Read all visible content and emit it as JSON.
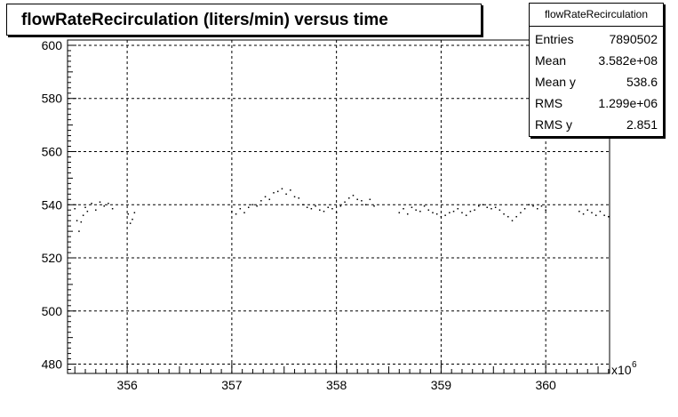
{
  "title": "flowRateRecirculation (liters/min) versus time",
  "stats": {
    "name": "flowRateRecirculation",
    "rows": [
      {
        "label": "Entries",
        "value": "7890502"
      },
      {
        "label": "Mean",
        "value": "3.582e+08"
      },
      {
        "label": "Mean y",
        "value": "538.6"
      },
      {
        "label": "RMS",
        "value": "1.299e+06"
      },
      {
        "label": "RMS y",
        "value": "2.851"
      }
    ]
  },
  "chart_data": {
    "type": "scatter",
    "title": "flowRateRecirculation (liters/min) versus time",
    "xlabel": "",
    "ylabel": "",
    "x_exponent_label": "x10",
    "x_exponent_power": "6",
    "xlim": [
      355.43,
      360.61
    ],
    "ylim": [
      476.5,
      602
    ],
    "xticks": [
      356,
      357,
      358,
      359,
      360
    ],
    "yticks": [
      480,
      500,
      520,
      540,
      560,
      580,
      600
    ],
    "grid": true,
    "series": [
      {
        "color": "#000000",
        "points": [
          [
            355.5,
            538.5
          ],
          [
            355.52,
            534.0
          ],
          [
            355.54,
            530.0
          ],
          [
            355.56,
            533.5
          ],
          [
            355.58,
            536.0
          ],
          [
            355.6,
            539.0
          ],
          [
            355.62,
            537.5
          ],
          [
            355.66,
            540.5
          ],
          [
            355.7,
            538.0
          ],
          [
            355.74,
            541.0
          ],
          [
            355.78,
            539.5
          ],
          [
            355.82,
            540.5
          ],
          [
            355.86,
            538.5
          ],
          [
            356.01,
            536.5
          ],
          [
            356.03,
            533.0
          ],
          [
            356.05,
            534.5
          ],
          [
            356.07,
            537.0
          ],
          [
            357.0,
            537.5
          ],
          [
            357.04,
            536.5
          ],
          [
            357.08,
            538.5
          ],
          [
            357.12,
            537.0
          ],
          [
            357.16,
            539.0
          ],
          [
            357.2,
            540.0
          ],
          [
            357.24,
            539.5
          ],
          [
            357.28,
            541.5
          ],
          [
            357.32,
            543.0
          ],
          [
            357.36,
            542.0
          ],
          [
            357.4,
            544.5
          ],
          [
            357.44,
            545.0
          ],
          [
            357.48,
            546.0
          ],
          [
            357.52,
            544.0
          ],
          [
            357.56,
            545.5
          ],
          [
            357.6,
            543.0
          ],
          [
            357.64,
            542.5
          ],
          [
            357.68,
            540.0
          ],
          [
            357.72,
            539.0
          ],
          [
            357.76,
            538.5
          ],
          [
            357.8,
            539.5
          ],
          [
            357.84,
            538.0
          ],
          [
            357.88,
            537.5
          ],
          [
            357.92,
            539.0
          ],
          [
            357.96,
            538.5
          ],
          [
            358.0,
            537.0
          ],
          [
            358.04,
            539.5
          ],
          [
            358.08,
            541.0
          ],
          [
            358.12,
            542.5
          ],
          [
            358.16,
            543.5
          ],
          [
            358.2,
            542.0
          ],
          [
            358.24,
            541.5
          ],
          [
            358.28,
            540.0
          ],
          [
            358.32,
            542.0
          ],
          [
            358.36,
            539.5
          ],
          [
            358.6,
            537.0
          ],
          [
            358.64,
            538.5
          ],
          [
            358.68,
            536.5
          ],
          [
            358.72,
            539.0
          ],
          [
            358.76,
            538.0
          ],
          [
            358.8,
            537.5
          ],
          [
            358.84,
            539.5
          ],
          [
            358.88,
            538.0
          ],
          [
            358.92,
            537.0
          ],
          [
            358.96,
            536.5
          ],
          [
            359.0,
            535.5
          ],
          [
            359.04,
            536.0
          ],
          [
            359.08,
            537.0
          ],
          [
            359.12,
            537.5
          ],
          [
            359.16,
            538.5
          ],
          [
            359.2,
            537.0
          ],
          [
            359.24,
            536.0
          ],
          [
            359.28,
            537.5
          ],
          [
            359.32,
            538.0
          ],
          [
            359.36,
            539.5
          ],
          [
            359.4,
            540.0
          ],
          [
            359.44,
            539.0
          ],
          [
            359.48,
            538.5
          ],
          [
            359.52,
            539.0
          ],
          [
            359.56,
            538.0
          ],
          [
            359.6,
            536.5
          ],
          [
            359.64,
            535.5
          ],
          [
            359.68,
            534.0
          ],
          [
            359.72,
            535.5
          ],
          [
            359.76,
            537.0
          ],
          [
            359.8,
            538.5
          ],
          [
            359.84,
            540.0
          ],
          [
            359.88,
            539.5
          ],
          [
            359.92,
            538.5
          ],
          [
            359.96,
            539.5
          ],
          [
            360.0,
            538.0
          ],
          [
            360.32,
            537.5
          ],
          [
            360.36,
            536.5
          ],
          [
            360.4,
            538.0
          ],
          [
            360.44,
            537.0
          ],
          [
            360.48,
            536.0
          ],
          [
            360.52,
            537.5
          ],
          [
            360.56,
            536.0
          ],
          [
            360.6,
            535.5
          ]
        ]
      }
    ]
  }
}
